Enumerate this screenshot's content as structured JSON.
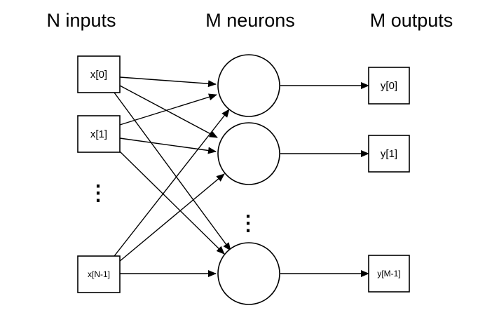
{
  "headings": {
    "inputs": "N inputs",
    "neurons": "M neurons",
    "outputs": "M outputs"
  },
  "inputs": [
    {
      "label": "x[0]"
    },
    {
      "label": "x[1]"
    },
    {
      "label": "x[N-1]"
    }
  ],
  "outputs": [
    {
      "label": "y[0]"
    },
    {
      "label": "y[1]"
    },
    {
      "label": "y[M-1]"
    }
  ],
  "ellipsis": {
    "inputs": "⋮",
    "neurons": "⋮"
  },
  "colors": {
    "stroke": "#000000",
    "background": "#ffffff"
  }
}
